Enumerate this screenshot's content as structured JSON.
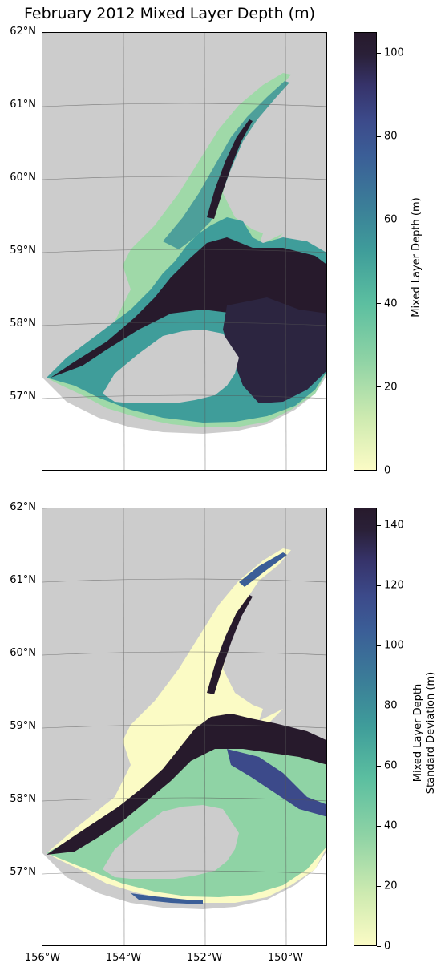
{
  "title": "February 2012 Mixed Layer Depth (m)",
  "lat_labels": [
    "62°N",
    "61°N",
    "60°N",
    "59°N",
    "58°N",
    "57°N"
  ],
  "lon_labels": [
    "156°W",
    "154°W",
    "152°W",
    "150°W"
  ],
  "colors": {
    "land": "#cccccc",
    "ocean_empty": "#ffffff",
    "cmap_low": "#fbfbc5",
    "cmap_high": "#271a2c"
  },
  "panels": [
    {
      "colorbar_label": "Mixed Layer Depth (m)",
      "colorbar_ticks": [
        "0",
        "20",
        "40",
        "60",
        "80",
        "100"
      ],
      "colorbar_range": [
        0,
        105
      ]
    },
    {
      "colorbar_label_line1": "Mixed Layer Depth",
      "colorbar_label_line2": "Standard Deviation (m)",
      "colorbar_ticks": [
        "0",
        "20",
        "40",
        "60",
        "80",
        "100",
        "120",
        "140"
      ],
      "colorbar_range": [
        0,
        146
      ]
    }
  ]
}
